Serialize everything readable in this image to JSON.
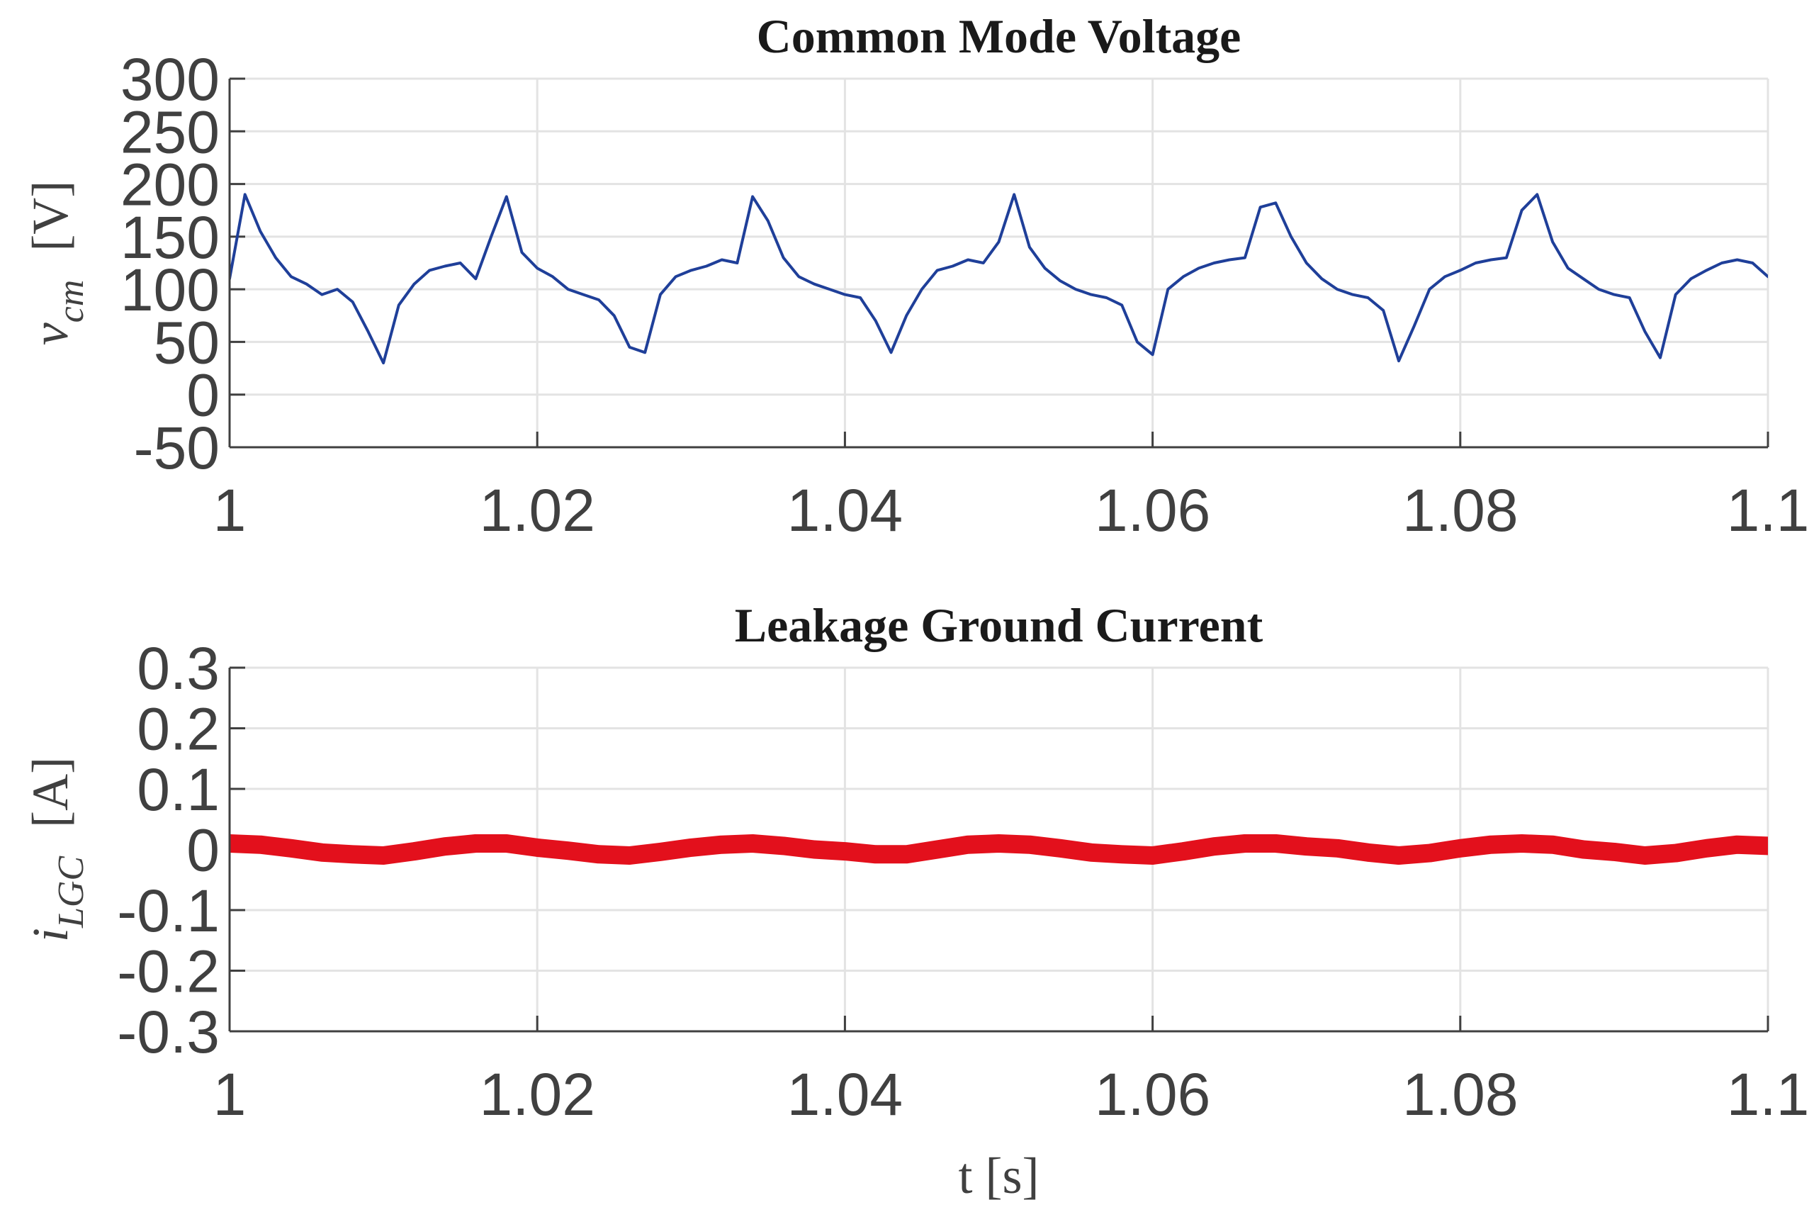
{
  "chart_data": [
    {
      "type": "line",
      "title": "Common Mode Voltage",
      "ylabel": {
        "symbol": "v",
        "subscript": "cm",
        "unit": "[V]"
      },
      "xlim": [
        1,
        1.1
      ],
      "xticks": [
        1,
        1.02,
        1.04,
        1.06,
        1.08,
        1.1
      ],
      "ylim": [
        -50,
        300
      ],
      "yticks": [
        -50,
        0,
        50,
        100,
        150,
        200,
        250,
        300
      ],
      "grid": true,
      "series": [
        {
          "color": "#1f3f99",
          "x": [
            1.0,
            1.001,
            1.002,
            1.003,
            1.004,
            1.005,
            1.006,
            1.007,
            1.008,
            1.009,
            1.01,
            1.011,
            1.012,
            1.013,
            1.014,
            1.015,
            1.016,
            1.017,
            1.018,
            1.019,
            1.02,
            1.021,
            1.022,
            1.023,
            1.024,
            1.025,
            1.026,
            1.027,
            1.028,
            1.029,
            1.03,
            1.031,
            1.032,
            1.033,
            1.034,
            1.035,
            1.036,
            1.037,
            1.038,
            1.039,
            1.04,
            1.041,
            1.042,
            1.043,
            1.044,
            1.045,
            1.046,
            1.047,
            1.048,
            1.049,
            1.05,
            1.051,
            1.052,
            1.053,
            1.054,
            1.055,
            1.056,
            1.057,
            1.058,
            1.059,
            1.06,
            1.061,
            1.062,
            1.063,
            1.064,
            1.065,
            1.066,
            1.067,
            1.068,
            1.069,
            1.07,
            1.071,
            1.072,
            1.073,
            1.074,
            1.075,
            1.076,
            1.077,
            1.078,
            1.079,
            1.08,
            1.081,
            1.082,
            1.083,
            1.084,
            1.085,
            1.086,
            1.087,
            1.088,
            1.089,
            1.09,
            1.091,
            1.092,
            1.093,
            1.094,
            1.095,
            1.096,
            1.097,
            1.098,
            1.099,
            1.1
          ],
          "values": [
            110,
            190,
            155,
            130,
            112,
            105,
            95,
            100,
            88,
            60,
            30,
            85,
            105,
            118,
            122,
            125,
            110,
            150,
            188,
            135,
            120,
            112,
            100,
            95,
            90,
            75,
            45,
            40,
            95,
            112,
            118,
            122,
            128,
            125,
            188,
            165,
            130,
            112,
            105,
            100,
            95,
            92,
            70,
            40,
            75,
            100,
            118,
            122,
            128,
            125,
            145,
            190,
            140,
            120,
            108,
            100,
            95,
            92,
            85,
            50,
            38,
            100,
            112,
            120,
            125,
            128,
            130,
            178,
            182,
            150,
            125,
            110,
            100,
            95,
            92,
            80,
            32,
            65,
            100,
            112,
            118,
            125,
            128,
            130,
            175,
            190,
            145,
            120,
            110,
            100,
            95,
            92,
            60,
            35,
            95,
            110,
            118,
            125,
            128,
            125,
            112
          ]
        }
      ]
    },
    {
      "type": "line",
      "title": "Leakage Ground Current",
      "ylabel": {
        "symbol": "i",
        "subscript": "LGC",
        "unit": "[A]"
      },
      "xlabel": "t [s]",
      "xlim": [
        1,
        1.1
      ],
      "xticks": [
        1,
        1.02,
        1.04,
        1.06,
        1.08,
        1.1
      ],
      "ylim": [
        -0.3,
        0.3
      ],
      "yticks": [
        -0.3,
        -0.2,
        -0.1,
        0,
        0.1,
        0.2,
        0.3
      ],
      "grid": true,
      "series": [
        {
          "color": "#e3101c",
          "x": [
            1.0,
            1.002,
            1.004,
            1.006,
            1.008,
            1.01,
            1.012,
            1.014,
            1.016,
            1.018,
            1.02,
            1.022,
            1.024,
            1.026,
            1.028,
            1.03,
            1.032,
            1.034,
            1.036,
            1.038,
            1.04,
            1.042,
            1.044,
            1.046,
            1.048,
            1.05,
            1.052,
            1.054,
            1.056,
            1.058,
            1.06,
            1.062,
            1.064,
            1.066,
            1.068,
            1.07,
            1.072,
            1.074,
            1.076,
            1.078,
            1.08,
            1.082,
            1.084,
            1.086,
            1.088,
            1.09,
            1.092,
            1.094,
            1.096,
            1.098,
            1.1
          ],
          "values": [
            0.01,
            0.008,
            0.002,
            -0.005,
            -0.008,
            -0.01,
            -0.003,
            0.005,
            0.01,
            0.01,
            0.003,
            -0.002,
            -0.008,
            -0.01,
            -0.004,
            0.003,
            0.008,
            0.01,
            0.006,
            0,
            -0.003,
            -0.008,
            -0.008,
            0,
            0.008,
            0.01,
            0.008,
            0.002,
            -0.005,
            -0.008,
            -0.01,
            -0.003,
            0.005,
            0.01,
            0.01,
            0.005,
            0.002,
            -0.005,
            -0.01,
            -0.006,
            0.002,
            0.008,
            0.01,
            0.008,
            0,
            -0.004,
            -0.01,
            -0.006,
            0.002,
            0.008,
            0.006
          ]
        }
      ]
    }
  ]
}
